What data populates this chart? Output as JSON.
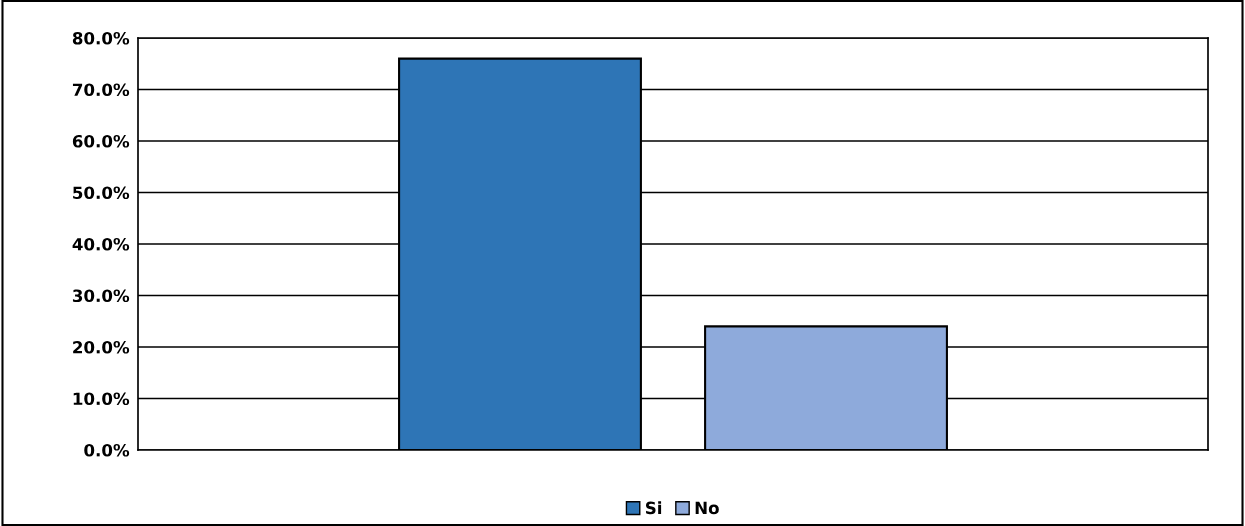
{
  "chart_data": {
    "type": "bar",
    "categories": [
      null
    ],
    "series": [
      {
        "name": "Si",
        "color": "#2e75b6",
        "values": [
          76
        ]
      },
      {
        "name": "No",
        "color": "#8eaadb",
        "values": [
          24
        ]
      }
    ],
    "ylim": [
      0,
      80
    ],
    "yticks": [
      {
        "value": 0,
        "label": "0.0%"
      },
      {
        "value": 10,
        "label": "10.0%"
      },
      {
        "value": 20,
        "label": "20.0%"
      },
      {
        "value": 30,
        "label": "30.0%"
      },
      {
        "value": 40,
        "label": "40.0%"
      },
      {
        "value": 50,
        "label": "50.0%"
      },
      {
        "value": 60,
        "label": "60.0%"
      },
      {
        "value": 70,
        "label": "70.0%"
      },
      {
        "value": 80,
        "label": "80.0%"
      }
    ],
    "grid": "y",
    "legend": "bottom"
  }
}
